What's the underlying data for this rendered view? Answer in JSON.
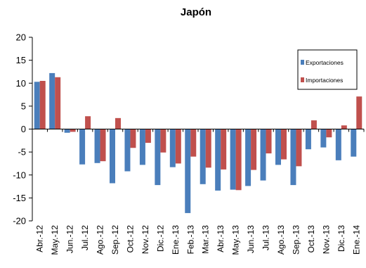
{
  "chart_data": {
    "type": "bar",
    "title": "Japón",
    "xlabel": "",
    "ylabel": "",
    "ylim": [
      -20,
      20
    ],
    "ytick_step": 5,
    "grid": false,
    "legend_position": "upper-right",
    "categories": [
      "Abr.-12",
      "May.-12",
      "Jun.-12",
      "Jul.-12",
      "Ago.-12",
      "Sep.-12",
      "Oct.-12",
      "Nov.-12",
      "Dic.-12",
      "Ene.-13",
      "Feb.-13",
      "Mar.-13",
      "Abr.-13",
      "May.-13",
      "Jun.-13",
      "Jul.-13",
      "Ago.-13",
      "Sep.-13",
      "Oct.-13",
      "Nov.-13",
      "Dic.-13",
      "Ene.-14"
    ],
    "series": [
      {
        "name": "Exportaciones",
        "color": "#4a7ebb",
        "values": [
          10.3,
          12.2,
          -0.8,
          -7.7,
          -7.4,
          -11.8,
          -9.2,
          -7.8,
          -12.2,
          -8.3,
          -18.3,
          -12.0,
          -13.4,
          -13.2,
          -12.4,
          -11.2,
          -7.8,
          -12.2,
          -4.4,
          -4.0,
          -6.8,
          -6.0
        ]
      },
      {
        "name": "Importaciones",
        "color": "#c0504d",
        "values": [
          10.5,
          11.3,
          -0.6,
          2.8,
          -7.0,
          2.4,
          -4.1,
          -3.0,
          -5.1,
          -7.5,
          -6.0,
          -8.4,
          -8.8,
          -13.3,
          -8.9,
          -5.3,
          -6.6,
          -8.1,
          1.9,
          -1.8,
          0.8,
          7.1
        ]
      }
    ]
  }
}
